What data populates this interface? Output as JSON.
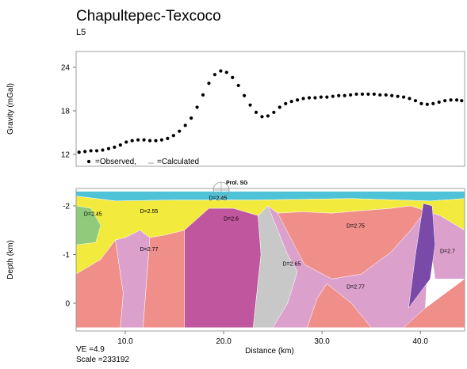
{
  "title": "Chapultepec-Texcoco",
  "subtitle": "L5",
  "colors": {
    "water": "#4ec3d8",
    "yellow": "#f2ea3c",
    "green": "#8fcb7a",
    "salmon": "#f08e8a",
    "pink": "#dca0cc",
    "magenta": "#c0569e",
    "gray": "#c8c8c8",
    "purple": "#7a4aa8"
  },
  "chart_data": [
    {
      "type": "scatter",
      "ylabel": "Gravity (mGal)",
      "ylim": [
        11,
        25
      ],
      "xlim": [
        5,
        44.5
      ],
      "yticks": [
        "24",
        "18",
        "12"
      ],
      "legend": {
        "observed": "=Observed,",
        "calculated": "=Calculated",
        "placement": "bottom-left"
      },
      "x": [
        5.3,
        5.9,
        6.5,
        7.1,
        7.7,
        8.3,
        8.9,
        9.5,
        10.1,
        10.7,
        11.3,
        11.9,
        12.5,
        13.1,
        13.7,
        14.3,
        14.9,
        15.5,
        16.1,
        16.7,
        17.3,
        17.9,
        18.5,
        19.1,
        19.7,
        20.3,
        20.9,
        21.5,
        22.1,
        22.7,
        23.3,
        23.9,
        24.5,
        25.1,
        25.7,
        26.3,
        26.9,
        27.5,
        28.1,
        28.7,
        29.3,
        29.9,
        30.5,
        31.1,
        31.7,
        32.3,
        32.9,
        33.5,
        34.1,
        34.7,
        35.3,
        35.9,
        36.5,
        37.1,
        37.7,
        38.3,
        38.9,
        39.5,
        40.1,
        40.7,
        41.3,
        41.9,
        42.5,
        43.1,
        43.7,
        44.2
      ],
      "y": [
        12.3,
        12.4,
        12.5,
        12.5,
        12.6,
        12.8,
        13.0,
        13.3,
        13.7,
        13.9,
        14.0,
        14.0,
        13.9,
        13.9,
        14.0,
        14.2,
        14.6,
        15.2,
        16.0,
        17.0,
        18.5,
        20.2,
        21.8,
        23.0,
        23.5,
        23.3,
        22.6,
        21.5,
        20.1,
        18.8,
        17.8,
        17.2,
        17.3,
        17.8,
        18.5,
        19.0,
        19.3,
        19.5,
        19.7,
        19.8,
        19.8,
        19.9,
        19.9,
        20.0,
        20.1,
        20.1,
        20.2,
        20.3,
        20.3,
        20.3,
        20.3,
        20.2,
        20.2,
        20.1,
        20.0,
        19.9,
        19.7,
        19.4,
        19.0,
        18.9,
        19.0,
        19.2,
        19.4,
        19.5,
        19.5,
        19.4
      ]
    },
    {
      "type": "area",
      "title": "Prol. SG",
      "xlabel": "Distance (km)",
      "ylabel": "Depth (km)",
      "xlim": [
        5,
        44.5
      ],
      "ylim": [
        -2.3,
        0.5
      ],
      "xticks": [
        "10.0",
        "20.0",
        "30.0",
        "40.0"
      ],
      "yticks": [
        "-2",
        "-1",
        "0"
      ],
      "bodies": [
        {
          "name": "water",
          "color": "water",
          "points": [
            [
              5,
              -2.3
            ],
            [
              44.5,
              -2.3
            ],
            [
              44.5,
              -2.15
            ],
            [
              41,
              -2.1
            ],
            [
              33,
              -2.15
            ],
            [
              23,
              -2.12
            ],
            [
              15,
              -2.12
            ],
            [
              9,
              -2.1
            ],
            [
              5,
              -2.2
            ]
          ]
        },
        {
          "name": "yellow",
          "color": "yellow",
          "points": [
            [
              5,
              -2.2
            ],
            [
              9,
              -2.1
            ],
            [
              15,
              -2.12
            ],
            [
              23,
              -2.12
            ],
            [
              33,
              -2.15
            ],
            [
              41,
              -2.1
            ],
            [
              44.5,
              -2.15
            ],
            [
              44.5,
              -1.5
            ],
            [
              42,
              -1.8
            ],
            [
              40.5,
              -1.9
            ],
            [
              39,
              -2.0
            ],
            [
              37,
              -1.95
            ],
            [
              34,
              -1.9
            ],
            [
              31,
              -1.85
            ],
            [
              28,
              -1.88
            ],
            [
              25.5,
              -1.85
            ],
            [
              24.5,
              -2.0
            ],
            [
              23.5,
              -1.8
            ],
            [
              21,
              -1.95
            ],
            [
              18.5,
              -1.95
            ],
            [
              16,
              -1.5
            ],
            [
              14,
              -1.4
            ],
            [
              12.5,
              -1.35
            ],
            [
              11.5,
              -1.5
            ],
            [
              10,
              -1.35
            ],
            [
              9,
              -1.3
            ],
            [
              7.5,
              -0.9
            ],
            [
              5,
              -0.6
            ]
          ]
        },
        {
          "name": "green",
          "color": "green",
          "points": [
            [
              5,
              -2.0
            ],
            [
              6.5,
              -1.95
            ],
            [
              7.5,
              -1.6
            ],
            [
              7,
              -1.25
            ],
            [
              5,
              -1.2
            ]
          ]
        },
        {
          "name": "salmon-left",
          "color": "salmon",
          "points": [
            [
              5,
              -0.6
            ],
            [
              7.5,
              -0.9
            ],
            [
              9,
              -1.3
            ],
            [
              9.8,
              -0.2
            ],
            [
              9.5,
              0.5
            ],
            [
              5,
              0.5
            ]
          ]
        },
        {
          "name": "pink-left",
          "color": "pink",
          "points": [
            [
              9,
              -1.3
            ],
            [
              10,
              -1.35
            ],
            [
              11.5,
              -1.5
            ],
            [
              12.5,
              -1.35
            ],
            [
              11.8,
              0.5
            ],
            [
              9.5,
              0.5
            ],
            [
              9.8,
              -0.2
            ]
          ]
        },
        {
          "name": "salmon-mid",
          "color": "salmon",
          "points": [
            [
              12.5,
              -1.35
            ],
            [
              14,
              -1.4
            ],
            [
              16,
              -1.5
            ],
            [
              16,
              0.5
            ],
            [
              11.8,
              0.5
            ]
          ]
        },
        {
          "name": "magenta",
          "color": "magenta",
          "points": [
            [
              16,
              -1.5
            ],
            [
              18.5,
              -1.95
            ],
            [
              21,
              -1.95
            ],
            [
              23.5,
              -1.8
            ],
            [
              23.8,
              -1.0
            ],
            [
              23,
              0.5
            ],
            [
              16,
              0.5
            ]
          ]
        },
        {
          "name": "gray",
          "color": "gray",
          "points": [
            [
              23.5,
              -1.8
            ],
            [
              24.5,
              -2.0
            ],
            [
              26.5,
              -1.0
            ],
            [
              27.5,
              -0.65
            ],
            [
              26.5,
              0.0
            ],
            [
              25,
              0.5
            ],
            [
              23,
              0.5
            ],
            [
              23.8,
              -1.0
            ]
          ]
        },
        {
          "name": "pink-right",
          "color": "pink",
          "points": [
            [
              24.5,
              -2.0
            ],
            [
              25.5,
              -1.85
            ],
            [
              28,
              -1.88
            ],
            [
              28.2,
              -0.8
            ],
            [
              31,
              -0.5
            ],
            [
              34,
              -0.6
            ],
            [
              37,
              -1.05
            ],
            [
              39,
              -1.5
            ],
            [
              40.3,
              -2.0
            ],
            [
              40.8,
              -1.0
            ],
            [
              40.5,
              0.1
            ],
            [
              44.5,
              -0.5
            ],
            [
              44.5,
              0.5
            ],
            [
              35,
              0.5
            ],
            [
              33,
              0.0
            ],
            [
              30.5,
              -0.4
            ],
            [
              29.5,
              -0.1
            ],
            [
              28.5,
              0.5
            ],
            [
              25,
              0.5
            ],
            [
              26.5,
              0.0
            ],
            [
              27.5,
              -0.65
            ],
            [
              26.5,
              -1.0
            ]
          ]
        },
        {
          "name": "salmon-right",
          "color": "salmon",
          "points": [
            [
              25.5,
              -1.85
            ],
            [
              28,
              -1.88
            ],
            [
              31,
              -1.85
            ],
            [
              34,
              -1.9
            ],
            [
              37,
              -1.95
            ],
            [
              39,
              -2.0
            ],
            [
              40.5,
              -1.9
            ],
            [
              39,
              -1.5
            ],
            [
              37,
              -1.05
            ],
            [
              34,
              -0.6
            ],
            [
              31,
              -0.5
            ],
            [
              28.2,
              -0.8
            ]
          ]
        },
        {
          "name": "salmon-bottom",
          "color": "salmon",
          "points": [
            [
              28.5,
              0.5
            ],
            [
              29.5,
              -0.1
            ],
            [
              30.5,
              -0.4
            ],
            [
              33,
              0.0
            ],
            [
              35,
              0.5
            ]
          ]
        },
        {
          "name": "pink-far",
          "color": "pink",
          "points": [
            [
              40.5,
              -1.9
            ],
            [
              42,
              -1.8
            ],
            [
              44.5,
              -1.5
            ],
            [
              44.5,
              -0.5
            ],
            [
              41.5,
              -0.5
            ],
            [
              41,
              -1.2
            ]
          ]
        },
        {
          "name": "purple",
          "color": "purple",
          "points": [
            [
              40.3,
              -2.05
            ],
            [
              41.2,
              -2.0
            ],
            [
              41.5,
              -1.2
            ],
            [
              41,
              -0.5
            ],
            [
              38.8,
              0.1
            ],
            [
              39.5,
              -1.0
            ]
          ]
        },
        {
          "name": "salmon-corner",
          "color": "salmon",
          "points": [
            [
              38.3,
              0.5
            ],
            [
              40.5,
              0.1
            ],
            [
              44.5,
              -0.5
            ],
            [
              44.5,
              0.5
            ]
          ]
        }
      ],
      "density_labels": [
        {
          "text": "D=2.45",
          "x": 5.8,
          "y": -1.8
        },
        {
          "text": "D=2.55",
          "x": 11.5,
          "y": -1.85
        },
        {
          "text": "D=2.45",
          "x": 18.5,
          "y": -2.12
        },
        {
          "text": "D=2.6",
          "x": 20,
          "y": -1.7
        },
        {
          "text": "D=2.77",
          "x": 11.5,
          "y": -1.07
        },
        {
          "text": "D=2.75",
          "x": 32.5,
          "y": -1.55
        },
        {
          "text": "D=2.65",
          "x": 26,
          "y": -0.77
        },
        {
          "text": "D=2.77",
          "x": 32.5,
          "y": -0.3
        },
        {
          "text": "D=2.7",
          "x": 42,
          "y": -1.03
        }
      ]
    }
  ],
  "footer": {
    "ve": "VE =4.9",
    "scale": "Scale =233192"
  }
}
